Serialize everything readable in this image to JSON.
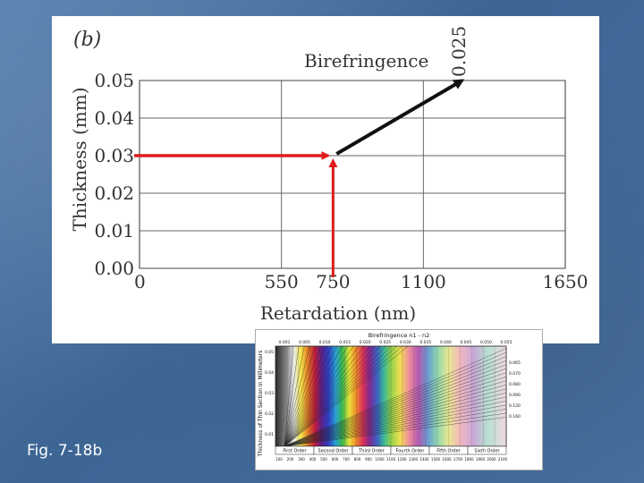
{
  "caption": "Fig. 7-18b",
  "colors": {
    "slide_background": "#3f6797",
    "panel_background": "#ffffff",
    "arrow_red": "#e01a1a",
    "arrow_black": "#111111",
    "grid": "#555555"
  },
  "chart_data": [
    {
      "type": "line",
      "panel_label": "(b)",
      "title": "",
      "xlabel": "Retardation (nm)",
      "ylabel": "Thickness (mm)",
      "x_ticks": [
        0,
        550,
        750,
        1100,
        1650
      ],
      "y_ticks": [
        "0.00",
        "0.01",
        "0.02",
        "0.03",
        "0.04",
        "0.05"
      ],
      "xlim": [
        0,
        1650
      ],
      "ylim": [
        0,
        0.05
      ],
      "grid": true,
      "series": [
        {
          "name": "Birefringence",
          "birefringence_value": "0.025",
          "x": [
            750,
            1250
          ],
          "y": [
            0.03,
            0.05
          ]
        }
      ],
      "annotations": {
        "horizontal_red_arrow": {
          "from": [
            0,
            0.03
          ],
          "to": [
            750,
            0.03
          ]
        },
        "vertical_red_arrow": {
          "from": [
            750,
            0.0
          ],
          "to": [
            750,
            0.03
          ]
        },
        "black_arrow": {
          "from": [
            750,
            0.03
          ],
          "to": [
            1250,
            0.05
          ]
        }
      }
    },
    {
      "type": "line",
      "title": "Birefringence n1 - n2",
      "ylabel": "Thickness of Thin Section in Millimeters",
      "top_ticks": [
        "0.001",
        "0.005",
        "0.010",
        "0.015",
        "0.020",
        "0.025",
        "0.030",
        "0.035",
        "0.040",
        "0.045",
        "0.050",
        "0.055"
      ],
      "right_ticks": [
        "0.065",
        "0.070",
        "0.080",
        "0.090",
        "0.120",
        "0.160"
      ],
      "left_ticks": [
        "0.05",
        "0.04",
        "0.03",
        "0.02",
        "0.01"
      ],
      "bottom_ticks": [
        "100",
        "200",
        "300",
        "400",
        "500",
        "600",
        "700",
        "800",
        "900",
        "1000",
        "1100",
        "1200",
        "1300",
        "1400",
        "1500",
        "1600",
        "1700",
        "1800",
        "1900",
        "2000",
        "2100"
      ],
      "orders": [
        "First Order",
        "Second Order",
        "Third Order",
        "Fourth Order",
        "Fifth Order",
        "Sixth Order"
      ]
    }
  ]
}
